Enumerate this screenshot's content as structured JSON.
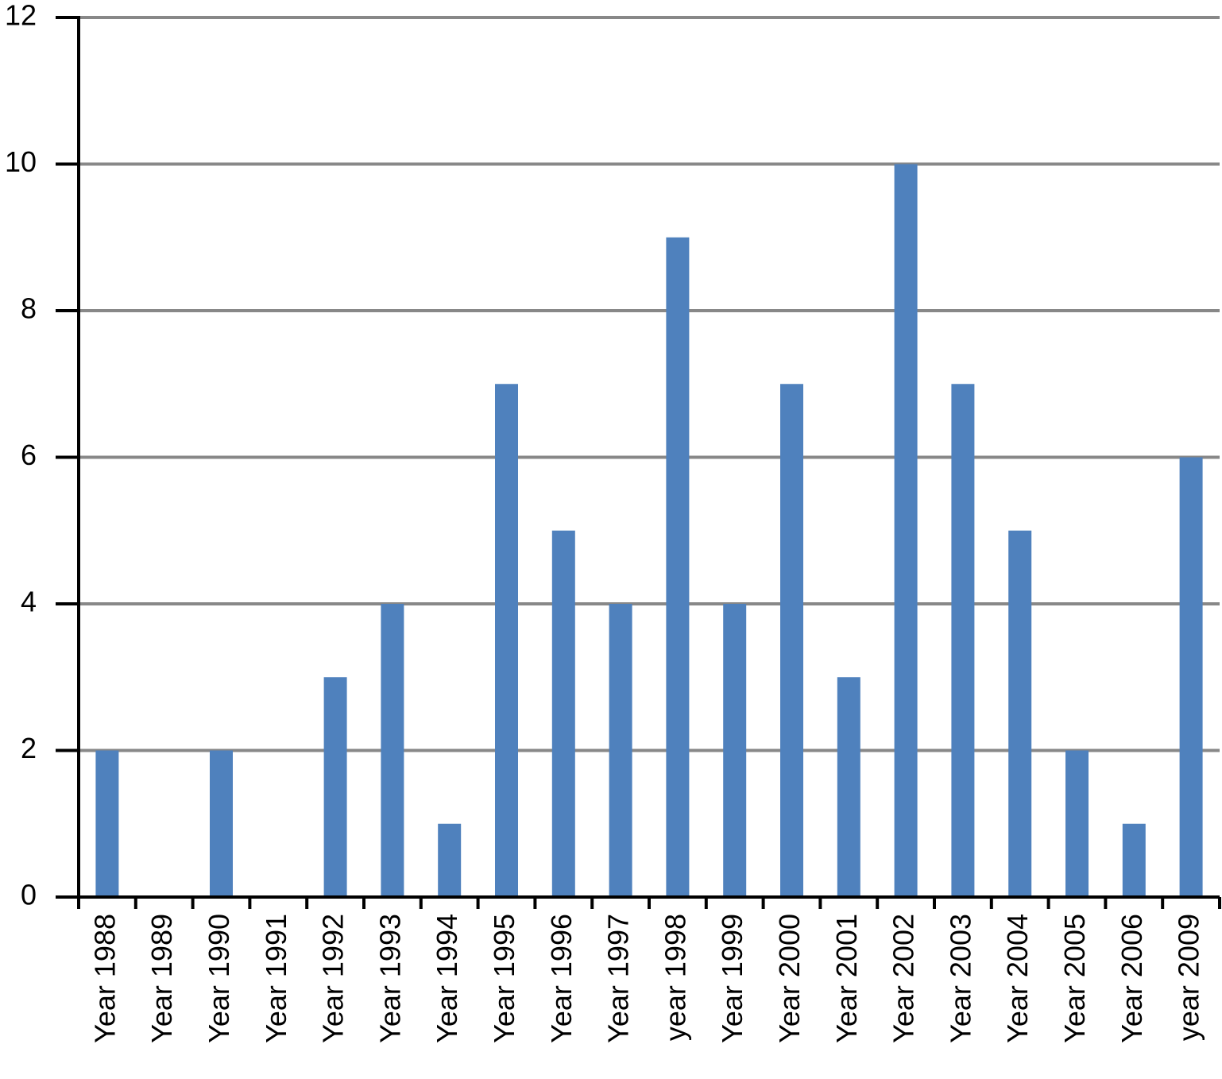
{
  "chart_data": {
    "type": "bar",
    "categories": [
      "Year 1988",
      "Year 1989",
      "Year 1990",
      "Year 1991",
      "Year 1992",
      "Year 1993",
      "Year 1994",
      "Year 1995",
      "Year 1996",
      "Year 1997",
      "year 1998",
      "Year 1999",
      "Year 2000",
      "Year 2001",
      "Year 2002",
      "Year 2003",
      "Year 2004",
      "Year 2005",
      "Year 2006",
      "year 2009"
    ],
    "values": [
      2,
      0,
      2,
      0,
      3,
      4,
      1,
      7,
      5,
      4,
      9,
      4,
      7,
      3,
      10,
      7,
      5,
      2,
      1,
      6
    ],
    "color": "#4f81bd",
    "ylim": [
      0,
      12
    ],
    "yticks": [
      0,
      2,
      4,
      6,
      8,
      10,
      12
    ],
    "grid": true
  }
}
